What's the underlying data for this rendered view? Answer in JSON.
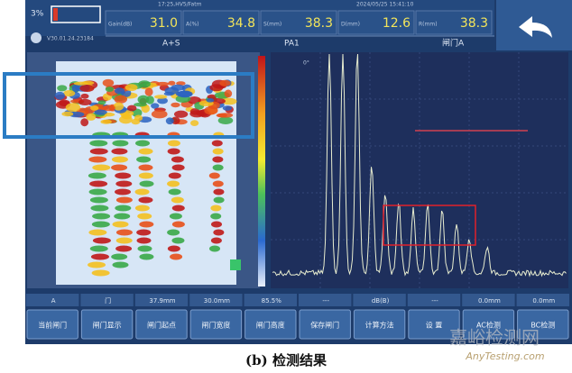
{
  "status": {
    "battery": "3%",
    "version": "V30.01.24.23184",
    "probe": "17:25,HV5/Fatm",
    "datetime": "2024/05/25 15:41:10"
  },
  "readings": [
    {
      "label": "Gain(dB)",
      "value": "31.0"
    },
    {
      "label": "A(%)",
      "value": "34.8"
    },
    {
      "label": "S(mm)",
      "value": "38.3"
    },
    {
      "label": "D(mm)",
      "value": "12.6"
    },
    {
      "label": "R(mm)",
      "value": "38.3"
    }
  ],
  "selectors": [
    "A+S",
    "PA1",
    "闸门A"
  ],
  "scan": {
    "angle": "0°"
  },
  "status_bar": [
    "A",
    "门",
    "37.9mm",
    "30.0mm",
    "85.5%",
    "---",
    "dB(B)",
    "---",
    "0.0mm",
    "0.0mm"
  ],
  "buttons": [
    "当前闸门",
    "闸门显示",
    "闸门起点",
    "闸门宽度",
    "闸门高度",
    "保存闸门",
    "计算方法",
    "设 置",
    "AC检测",
    "BC检测"
  ],
  "caption": "(b) 检测结果",
  "watermark": {
    "cn": "嘉峪检测网",
    "en": "AnyTesting.com"
  }
}
